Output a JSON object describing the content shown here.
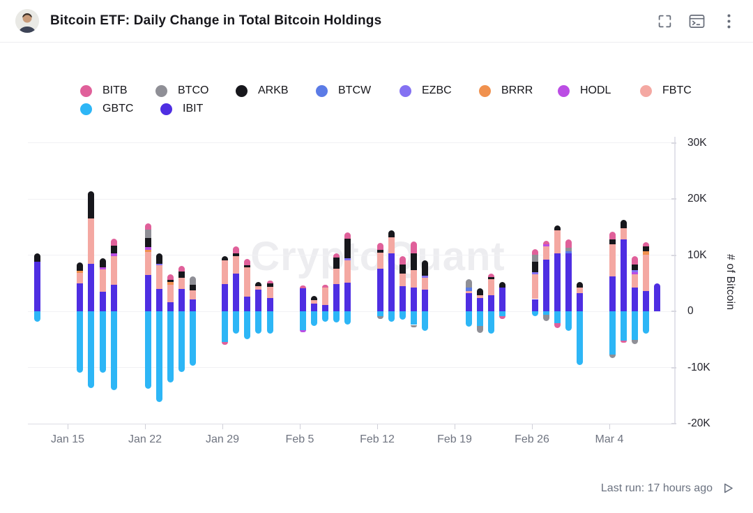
{
  "header": {
    "title": "Bitcoin ETF: Daily Change in Total Bitcoin Holdings",
    "icons": [
      "fullscreen",
      "console",
      "kebab-menu"
    ]
  },
  "watermark": "CryptoQuant",
  "footer": {
    "last_run": "Last run: 17 hours ago",
    "icon": "play"
  },
  "chart_data": {
    "type": "bar",
    "subtype": "stacked-bar-time-series",
    "title": "Bitcoin ETF: Daily Change in Total Bitcoin Holdings",
    "ylabel": "# of Bitcoin",
    "values_unit": "thousand BTC (K)",
    "ylim": [
      -20000,
      30000
    ],
    "grid": "horizontal",
    "legend_position": "top",
    "colors": {
      "BITB": "#e0609a",
      "BTCO": "#8f8f96",
      "ARKB": "#17171c",
      "BTCW": "#5b7be6",
      "EZBC": "#8471f2",
      "BRRR": "#f0914e",
      "HODL": "#bb4de4",
      "FBTC": "#f4a8a2",
      "GBTC": "#2db6f6",
      "IBIT": "#4e2ee2"
    },
    "legend": [
      {
        "label": "BITB",
        "x": 115,
        "row": 1
      },
      {
        "label": "BTCO",
        "x": 223,
        "row": 1
      },
      {
        "label": "ARKB",
        "x": 338,
        "row": 1
      },
      {
        "label": "BTCW",
        "x": 453,
        "row": 1
      },
      {
        "label": "EZBC",
        "x": 573,
        "row": 1
      },
      {
        "label": "BRRR",
        "x": 687,
        "row": 1
      },
      {
        "label": "HODL",
        "x": 800,
        "row": 1
      },
      {
        "label": "FBTC",
        "x": 918,
        "row": 1
      },
      {
        "label": "GBTC",
        "x": 115,
        "row": 2
      },
      {
        "label": "IBIT",
        "x": 230,
        "row": 2
      }
    ],
    "yticks": [
      {
        "v": 30,
        "label": "30K"
      },
      {
        "v": 20,
        "label": "20K"
      },
      {
        "v": 10,
        "label": "10K"
      },
      {
        "v": 0,
        "label": "0"
      },
      {
        "v": -10,
        "label": "-10K"
      },
      {
        "v": -20,
        "label": "-20K"
      }
    ],
    "xticks": [
      {
        "x": 97,
        "label": "Jan 15"
      },
      {
        "x": 208,
        "label": "Jan 22"
      },
      {
        "x": 319,
        "label": "Jan 29"
      },
      {
        "x": 430,
        "label": "Feb 5"
      },
      {
        "x": 541,
        "label": "Feb 12"
      },
      {
        "x": 652,
        "label": "Feb 19"
      },
      {
        "x": 763,
        "label": "Feb 26"
      },
      {
        "x": 874,
        "label": "Mar 4"
      }
    ],
    "bars": [
      {
        "date": "Jan 12",
        "x": 53,
        "segments": [
          [
            "IBIT",
            8.8
          ],
          [
            "ARKB",
            1.6
          ],
          [
            "GBTC",
            -1.8
          ]
        ]
      },
      {
        "date": "Jan 16",
        "x": 114,
        "segments": [
          [
            "IBIT",
            5.0
          ],
          [
            "FBTC",
            1.9
          ],
          [
            "BRRR",
            0.3
          ],
          [
            "ARKB",
            1.5
          ],
          [
            "GBTC",
            -10.9
          ]
        ]
      },
      {
        "date": "Jan 17",
        "x": 130,
        "segments": [
          [
            "IBIT",
            8.5
          ],
          [
            "FBTC",
            8.1
          ],
          [
            "ARKB",
            4.8
          ],
          [
            "GBTC",
            -13.6
          ]
        ]
      },
      {
        "date": "Jan 18",
        "x": 147,
        "segments": [
          [
            "IBIT",
            3.5
          ],
          [
            "FBTC",
            4.0
          ],
          [
            "HODL",
            0.4
          ],
          [
            "ARKB",
            1.6
          ],
          [
            "GBTC",
            -10.9
          ]
        ]
      },
      {
        "date": "Jan 19",
        "x": 163,
        "segments": [
          [
            "IBIT",
            4.8
          ],
          [
            "FBTC",
            5.0
          ],
          [
            "HODL",
            0.5
          ],
          [
            "ARKB",
            1.4
          ],
          [
            "BITB",
            1.2
          ],
          [
            "GBTC",
            -14.0
          ]
        ]
      },
      {
        "date": "Jan 22",
        "x": 212,
        "segments": [
          [
            "IBIT",
            6.5
          ],
          [
            "FBTC",
            4.1
          ],
          [
            "BRRR",
            0.4
          ],
          [
            "HODL",
            0.5
          ],
          [
            "ARKB",
            1.6
          ],
          [
            "BTCO",
            1.5
          ],
          [
            "BITB",
            1.1
          ],
          [
            "GBTC",
            -13.8
          ]
        ]
      },
      {
        "date": "Jan 23",
        "x": 228,
        "segments": [
          [
            "IBIT",
            4.0
          ],
          [
            "FBTC",
            4.2
          ],
          [
            "EZBC",
            0.3
          ],
          [
            "ARKB",
            1.9
          ],
          [
            "GBTC",
            -16.1
          ]
        ]
      },
      {
        "date": "Jan 24",
        "x": 244,
        "segments": [
          [
            "IBIT",
            1.6
          ],
          [
            "FBTC",
            3.1
          ],
          [
            "BRRR",
            0.5
          ],
          [
            "ARKB",
            0.4
          ],
          [
            "BITB",
            1.0
          ],
          [
            "GBTC",
            -12.7
          ]
        ]
      },
      {
        "date": "Jan 25",
        "x": 260,
        "segments": [
          [
            "IBIT",
            4.0
          ],
          [
            "FBTC",
            2.0
          ],
          [
            "ARKB",
            1.1
          ],
          [
            "BITB",
            1.0
          ],
          [
            "GBTC",
            -10.8
          ]
        ]
      },
      {
        "date": "Jan 26",
        "x": 276,
        "segments": [
          [
            "IBIT",
            2.1
          ],
          [
            "FBTC",
            1.6
          ],
          [
            "ARKB",
            1.0
          ],
          [
            "BTCO",
            1.5
          ],
          [
            "GBTC",
            -9.7
          ]
        ]
      },
      {
        "date": "Jan 29",
        "x": 322,
        "segments": [
          [
            "IBIT",
            4.9
          ],
          [
            "FBTC",
            4.2
          ],
          [
            "ARKB",
            0.8
          ],
          [
            "GBTC",
            -5.5
          ],
          [
            "BITB",
            -0.5
          ]
        ]
      },
      {
        "date": "Jan 30",
        "x": 338,
        "segments": [
          [
            "IBIT",
            6.7
          ],
          [
            "FBTC",
            3.1
          ],
          [
            "ARKB",
            0.6
          ],
          [
            "BITB",
            1.2
          ],
          [
            "GBTC",
            -4.0
          ]
        ]
      },
      {
        "date": "Jan 31",
        "x": 354,
        "segments": [
          [
            "IBIT",
            2.6
          ],
          [
            "FBTC",
            5.2
          ],
          [
            "ARKB",
            0.4
          ],
          [
            "BITB",
            1.2
          ],
          [
            "GBTC",
            -4.9
          ]
        ]
      },
      {
        "date": "Feb 1",
        "x": 370,
        "segments": [
          [
            "IBIT",
            3.9
          ],
          [
            "FBTC",
            0.6
          ],
          [
            "ARKB",
            0.7
          ],
          [
            "GBTC",
            -3.9
          ]
        ]
      },
      {
        "date": "Feb 2",
        "x": 387,
        "segments": [
          [
            "IBIT",
            2.4
          ],
          [
            "FBTC",
            2.0
          ],
          [
            "ARKB",
            0.6
          ],
          [
            "BITB",
            0.5
          ],
          [
            "GBTC",
            -3.9
          ]
        ]
      },
      {
        "date": "Feb 5",
        "x": 434,
        "segments": [
          [
            "IBIT",
            4.1
          ],
          [
            "BITB",
            0.5
          ],
          [
            "GBTC",
            -3.3
          ],
          [
            "HODL",
            -0.4
          ]
        ]
      },
      {
        "date": "Feb 6",
        "x": 450,
        "segments": [
          [
            "IBIT",
            1.4
          ],
          [
            "FBTC",
            0.6
          ],
          [
            "ARKB",
            0.7
          ],
          [
            "GBTC",
            -2.6
          ]
        ]
      },
      {
        "date": "Feb 7",
        "x": 466,
        "segments": [
          [
            "IBIT",
            1.1
          ],
          [
            "FBTC",
            3.1
          ],
          [
            "BITB",
            0.6
          ],
          [
            "GBTC",
            -1.8
          ]
        ]
      },
      {
        "date": "Feb 8",
        "x": 482,
        "segments": [
          [
            "IBIT",
            4.9
          ],
          [
            "FBTC",
            2.7
          ],
          [
            "ARKB",
            2.0
          ],
          [
            "BITB",
            0.7
          ],
          [
            "GBTC",
            -2.0
          ]
        ]
      },
      {
        "date": "Feb 9",
        "x": 498,
        "segments": [
          [
            "IBIT",
            5.1
          ],
          [
            "FBTC",
            4.0
          ],
          [
            "EZBC",
            0.4
          ],
          [
            "ARKB",
            3.4
          ],
          [
            "BITB",
            1.2
          ],
          [
            "GBTC",
            -2.4
          ]
        ]
      },
      {
        "date": "Feb 12",
        "x": 545,
        "segments": [
          [
            "IBIT",
            7.6
          ],
          [
            "FBTC",
            2.9
          ],
          [
            "ARKB",
            0.5
          ],
          [
            "BITB",
            1.2
          ],
          [
            "GBTC",
            -0.9
          ],
          [
            "BTCO",
            -0.5
          ]
        ]
      },
      {
        "date": "Feb 13",
        "x": 561,
        "segments": [
          [
            "IBIT",
            10.3
          ],
          [
            "FBTC",
            2.9
          ],
          [
            "ARKB",
            1.2
          ],
          [
            "GBTC",
            -1.8
          ]
        ]
      },
      {
        "date": "Feb 14",
        "x": 577,
        "segments": [
          [
            "IBIT",
            4.5
          ],
          [
            "FBTC",
            2.2
          ],
          [
            "ARKB",
            1.7
          ],
          [
            "BITB",
            1.4
          ],
          [
            "GBTC",
            -1.5
          ]
        ]
      },
      {
        "date": "Feb 15",
        "x": 593,
        "segments": [
          [
            "IBIT",
            4.2
          ],
          [
            "FBTC",
            3.1
          ],
          [
            "ARKB",
            3.0
          ],
          [
            "BITB",
            2.2
          ],
          [
            "GBTC",
            -2.4
          ],
          [
            "BTCO",
            -0.4
          ]
        ]
      },
      {
        "date": "Feb 16",
        "x": 609,
        "segments": [
          [
            "IBIT",
            3.9
          ],
          [
            "FBTC",
            2.1
          ],
          [
            "EZBC",
            0.4
          ],
          [
            "ARKB",
            2.7
          ],
          [
            "GBTC",
            -3.4
          ]
        ]
      },
      {
        "date": "Feb 20",
        "x": 672,
        "segments": [
          [
            "IBIT",
            3.2
          ],
          [
            "FBTC",
            0.4
          ],
          [
            "BTCW",
            0.6
          ],
          [
            "BTCO",
            1.5
          ],
          [
            "GBTC",
            -2.7
          ]
        ]
      },
      {
        "date": "Feb 21",
        "x": 688,
        "segments": [
          [
            "IBIT",
            2.4
          ],
          [
            "FBTC",
            0.5
          ],
          [
            "ARKB",
            1.2
          ],
          [
            "GBTC",
            -2.6
          ],
          [
            "BTCO",
            -1.2
          ]
        ]
      },
      {
        "date": "Feb 22",
        "x": 704,
        "segments": [
          [
            "IBIT",
            2.9
          ],
          [
            "FBTC",
            2.9
          ],
          [
            "ARKB",
            0.3
          ],
          [
            "BITB",
            0.6
          ],
          [
            "GBTC",
            -4.0
          ]
        ]
      },
      {
        "date": "Feb 23",
        "x": 720,
        "segments": [
          [
            "IBIT",
            4.2
          ],
          [
            "ARKB",
            1.1
          ],
          [
            "GBTC",
            -0.9
          ],
          [
            "BITB",
            -0.5
          ]
        ]
      },
      {
        "date": "Feb 26",
        "x": 767,
        "segments": [
          [
            "IBIT",
            2.2
          ],
          [
            "FBTC",
            4.4
          ],
          [
            "EZBC",
            0.4
          ],
          [
            "ARKB",
            1.9
          ],
          [
            "BTCO",
            1.2
          ],
          [
            "BITB",
            1.0
          ],
          [
            "GBTC",
            -0.9
          ]
        ]
      },
      {
        "date": "Feb 27",
        "x": 783,
        "segments": [
          [
            "IBIT",
            9.2
          ],
          [
            "FBTC",
            2.4
          ],
          [
            "HODL",
            0.4
          ],
          [
            "BITB",
            0.6
          ],
          [
            "GBTC",
            -0.6
          ],
          [
            "BTCO",
            -1.1
          ]
        ]
      },
      {
        "date": "Feb 28",
        "x": 799,
        "segments": [
          [
            "IBIT",
            10.3
          ],
          [
            "FBTC",
            4.1
          ],
          [
            "ARKB",
            0.9
          ],
          [
            "GBTC",
            -2.1
          ],
          [
            "BITB",
            -0.9
          ]
        ]
      },
      {
        "date": "Feb 29",
        "x": 815,
        "segments": [
          [
            "IBIT",
            10.3
          ],
          [
            "BTCW",
            0.4
          ],
          [
            "BTCO",
            0.6
          ],
          [
            "BITB",
            1.5
          ],
          [
            "GBTC",
            -3.4
          ]
        ]
      },
      {
        "date": "Mar 1",
        "x": 831,
        "segments": [
          [
            "IBIT",
            3.2
          ],
          [
            "FBTC",
            1.0
          ],
          [
            "ARKB",
            1.1
          ],
          [
            "GBTC",
            -9.6
          ]
        ]
      },
      {
        "date": "Mar 4",
        "x": 878,
        "segments": [
          [
            "IBIT",
            6.3
          ],
          [
            "FBTC",
            5.6
          ],
          [
            "ARKB",
            0.9
          ],
          [
            "BITB",
            1.4
          ],
          [
            "GBTC",
            -7.7
          ],
          [
            "BTCO",
            -0.6
          ]
        ]
      },
      {
        "date": "Mar 5",
        "x": 894,
        "segments": [
          [
            "IBIT",
            12.8
          ],
          [
            "FBTC",
            2.0
          ],
          [
            "ARKB",
            1.5
          ],
          [
            "GBTC",
            -5.2
          ],
          [
            "BITB",
            -0.4
          ]
        ]
      },
      {
        "date": "Mar 6",
        "x": 910,
        "segments": [
          [
            "IBIT",
            4.2
          ],
          [
            "FBTC",
            2.4
          ],
          [
            "HODL",
            0.4
          ],
          [
            "EZBC",
            0.4
          ],
          [
            "ARKB",
            0.9
          ],
          [
            "BITB",
            1.6
          ],
          [
            "GBTC",
            -5.1
          ],
          [
            "BTCO",
            -0.7
          ]
        ]
      },
      {
        "date": "Mar 7",
        "x": 926,
        "segments": [
          [
            "IBIT",
            3.6
          ],
          [
            "FBTC",
            6.5
          ],
          [
            "BRRR",
            0.6
          ],
          [
            "ARKB",
            0.9
          ],
          [
            "BITB",
            0.7
          ],
          [
            "GBTC",
            -3.9
          ]
        ]
      },
      {
        "date": "Mar 8",
        "x": 942,
        "segments": [
          [
            "IBIT",
            5.0
          ]
        ]
      }
    ]
  }
}
